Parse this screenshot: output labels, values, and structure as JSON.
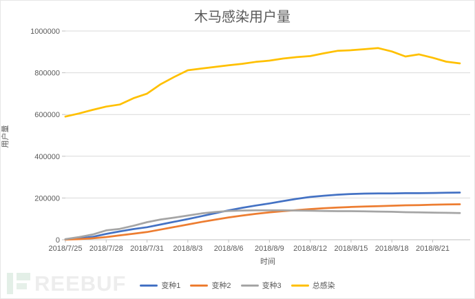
{
  "title": "木马感染用户量",
  "watermark": {
    "text": "REEBUF"
  },
  "chart_data": {
    "type": "line",
    "title": "木马感染用户量",
    "xlabel": "时间",
    "ylabel": "用户量",
    "ylim": [
      0,
      1000000
    ],
    "ytick_interval": 200000,
    "ytick_labels": [
      "0",
      "200000",
      "400000",
      "600000",
      "800000",
      "1000000"
    ],
    "grid": true,
    "legend_position": "bottom",
    "x": [
      "2018/7/25",
      "2018/7/26",
      "2018/7/27",
      "2018/7/28",
      "2018/7/29",
      "2018/7/30",
      "2018/7/31",
      "2018/8/1",
      "2018/8/2",
      "2018/8/3",
      "2018/8/4",
      "2018/8/5",
      "2018/8/6",
      "2018/8/7",
      "2018/8/8",
      "2018/8/9",
      "2018/8/10",
      "2018/8/11",
      "2018/8/12",
      "2018/8/13",
      "2018/8/14",
      "2018/8/15",
      "2018/8/16",
      "2018/8/17",
      "2018/8/18",
      "2018/8/19",
      "2018/8/20",
      "2018/8/21",
      "2018/8/22",
      "2018/8/23"
    ],
    "xtick_labels": [
      "2018/7/25",
      "2018/7/28",
      "2018/7/31",
      "2018/8/3",
      "2018/8/6",
      "2018/8/9",
      "2018/8/12",
      "2018/8/15",
      "2018/8/18",
      "2018/8/21"
    ],
    "xtick_every": 3,
    "series": [
      {
        "name": "变种1",
        "color": "#4472C4",
        "values": [
          2000,
          7000,
          14000,
          28000,
          40000,
          51000,
          60000,
          73000,
          86000,
          99000,
          113000,
          127000,
          141000,
          153000,
          164000,
          174000,
          185000,
          196000,
          205000,
          211000,
          216000,
          219000,
          221000,
          222000,
          222000,
          223000,
          223000,
          224000,
          225000,
          226000
        ]
      },
      {
        "name": "变种2",
        "color": "#ED7D31",
        "values": [
          1000,
          3000,
          7000,
          13000,
          21000,
          29000,
          37000,
          49000,
          61000,
          73000,
          85000,
          96000,
          107000,
          116000,
          124000,
          131000,
          137000,
          142000,
          147000,
          151000,
          154000,
          157000,
          159000,
          161000,
          163000,
          165000,
          166000,
          168000,
          169000,
          170000
        ]
      },
      {
        "name": "变种3",
        "color": "#A5A5A5",
        "values": [
          3000,
          13000,
          25000,
          45000,
          52000,
          67000,
          84000,
          97000,
          106000,
          116000,
          126000,
          133000,
          138000,
          140000,
          141000,
          141000,
          141000,
          140000,
          139000,
          138000,
          137000,
          137000,
          136000,
          135000,
          134000,
          132000,
          131000,
          130000,
          129000,
          128000
        ]
      },
      {
        "name": "总感染",
        "color": "#FFC000",
        "values": [
          590000,
          605000,
          622000,
          638000,
          648000,
          678000,
          700000,
          745000,
          780000,
          812000,
          820000,
          828000,
          836000,
          843000,
          852000,
          858000,
          868000,
          875000,
          880000,
          893000,
          905000,
          908000,
          913000,
          918000,
          902000,
          878000,
          888000,
          872000,
          853000,
          845000
        ]
      }
    ],
    "style": {
      "gridline_color": "#D9D9D9",
      "axis_color": "#BFBFBF",
      "text_color": "#595959"
    }
  }
}
